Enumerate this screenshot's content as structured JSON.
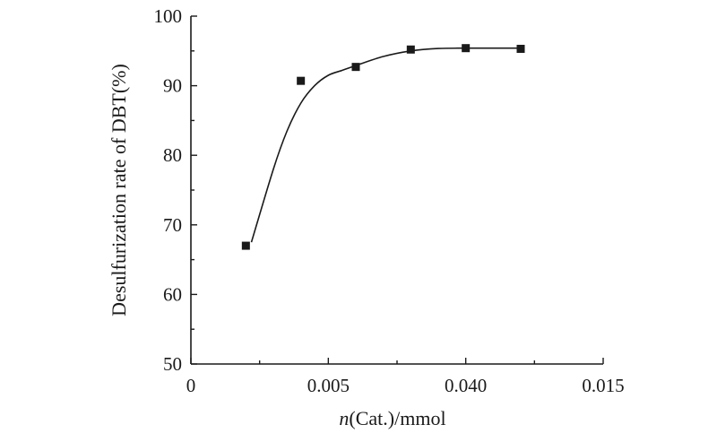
{
  "chart_data": {
    "type": "scatter",
    "title": "",
    "xlabel_italic": "n",
    "xlabel_rest": "(Cat.)/mmol",
    "ylabel": "Desulfurization rate of DBT(%)",
    "x_tick_labels": [
      "0",
      "0.005",
      "0.040",
      "0.015"
    ],
    "y_ticks": [
      50,
      60,
      70,
      80,
      90,
      100
    ],
    "ylim": [
      50,
      100
    ],
    "grid": false,
    "legend": "none",
    "series": [
      {
        "x": [
          0.002,
          0.004,
          0.006,
          0.008,
          0.01,
          0.012
        ],
        "y": [
          67,
          90.7,
          92.7,
          95.2,
          95.4,
          95.3
        ]
      }
    ],
    "fit_curve": {
      "x": [
        0.0022,
        0.003,
        0.0035,
        0.004,
        0.0045,
        0.005,
        0.0055,
        0.006,
        0.007,
        0.008,
        0.009,
        0.01,
        0.011,
        0.012
      ],
      "y": [
        67.5,
        78,
        83.5,
        87.5,
        90,
        91.5,
        92.2,
        92.9,
        94.2,
        95.0,
        95.35,
        95.4,
        95.4,
        95.4
      ]
    }
  }
}
